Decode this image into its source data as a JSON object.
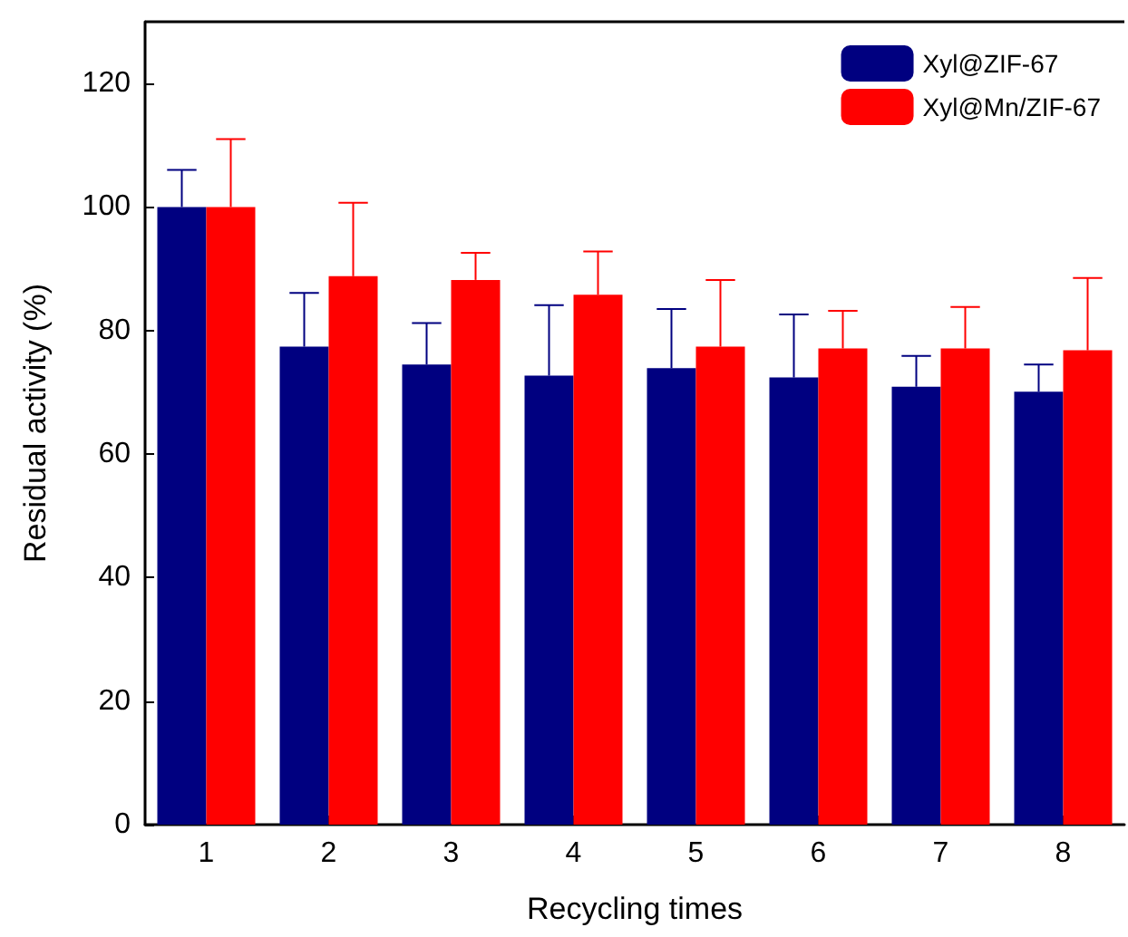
{
  "chart_data": {
    "type": "bar",
    "xlabel": "Recycling times",
    "ylabel": "Residual activity (%)",
    "categories": [
      "1",
      "2",
      "3",
      "4",
      "5",
      "6",
      "7",
      "8"
    ],
    "series": [
      {
        "name": "Xyl@ZIF-67",
        "color": "#000080",
        "values": [
          100,
          77.4,
          74.5,
          72.7,
          73.9,
          72.4,
          70.9,
          70.1
        ],
        "errors": [
          [
            100,
            106
          ],
          [
            77.4,
            86.1
          ],
          [
            74.5,
            81.2
          ],
          [
            72.7,
            84.1
          ],
          [
            73.9,
            83.5
          ],
          [
            72.4,
            82.6
          ],
          [
            70.9,
            75.9
          ],
          [
            70.1,
            74.5
          ]
        ]
      },
      {
        "name": "Xyl@Mn/ZIF-67",
        "color": "#ff0000",
        "values": [
          100,
          88.8,
          88.2,
          85.8,
          77.4,
          77.1,
          77.1,
          76.8
        ],
        "errors": [
          [
            100,
            111
          ],
          [
            88.8,
            100.7
          ],
          [
            88.2,
            92.6
          ],
          [
            85.8,
            92.8
          ],
          [
            77.4,
            88.2
          ],
          [
            77.1,
            83.2
          ],
          [
            77.1,
            83.8
          ],
          [
            76.8,
            88.5
          ]
        ]
      }
    ],
    "ylim": [
      0,
      130
    ],
    "yticks": [
      0,
      20,
      40,
      60,
      80,
      100,
      120
    ],
    "grid": false,
    "legend": "top right"
  }
}
